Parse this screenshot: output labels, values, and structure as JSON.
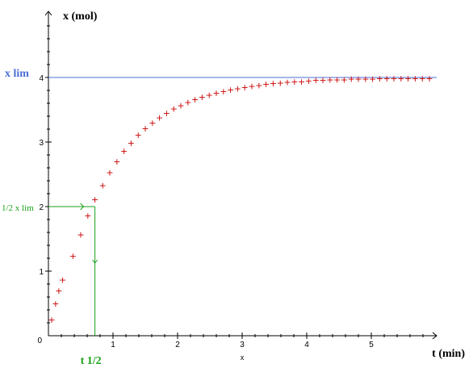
{
  "chart_data": {
    "type": "scatter",
    "title": "",
    "xlabel": "t (min)",
    "ylabel": "x (mol)",
    "x_axis_mark": "x",
    "origin_label": "0",
    "xlim": [
      0,
      5.9
    ],
    "ylim": [
      0,
      5.0
    ],
    "x_ticks": [
      1,
      2,
      3,
      4,
      5
    ],
    "x_tick_labels": [
      "1",
      "2",
      "3",
      "4",
      "5"
    ],
    "y_ticks": [
      1,
      2,
      3,
      4
    ],
    "y_tick_labels": [
      "1",
      "2",
      "3",
      "4"
    ],
    "grid": false,
    "marker": "+",
    "marker_color": "#cc0000",
    "points": [
      [
        0.05,
        0.25
      ],
      [
        0.11,
        0.5
      ],
      [
        0.16,
        0.7
      ],
      [
        0.22,
        0.87
      ],
      [
        0.38,
        1.24
      ],
      [
        0.5,
        1.57
      ],
      [
        0.61,
        1.86
      ],
      [
        0.72,
        2.11
      ],
      [
        0.84,
        2.33
      ],
      [
        0.95,
        2.53
      ],
      [
        1.06,
        2.7
      ],
      [
        1.17,
        2.86
      ],
      [
        1.28,
        2.99
      ],
      [
        1.39,
        3.11
      ],
      [
        1.5,
        3.21
      ],
      [
        1.61,
        3.3
      ],
      [
        1.72,
        3.38
      ],
      [
        1.83,
        3.45
      ],
      [
        1.94,
        3.52
      ],
      [
        2.05,
        3.57
      ],
      [
        2.16,
        3.62
      ],
      [
        2.27,
        3.66
      ],
      [
        2.38,
        3.7
      ],
      [
        2.49,
        3.73
      ],
      [
        2.6,
        3.76
      ],
      [
        2.71,
        3.79
      ],
      [
        2.82,
        3.81
      ],
      [
        2.93,
        3.83
      ],
      [
        3.04,
        3.85
      ],
      [
        3.15,
        3.87
      ],
      [
        3.26,
        3.88
      ],
      [
        3.37,
        3.9
      ],
      [
        3.48,
        3.91
      ],
      [
        3.59,
        3.92
      ],
      [
        3.7,
        3.93
      ],
      [
        3.81,
        3.94
      ],
      [
        3.92,
        3.94
      ],
      [
        4.03,
        3.95
      ],
      [
        4.14,
        3.96
      ],
      [
        4.25,
        3.96
      ],
      [
        4.36,
        3.97
      ],
      [
        4.47,
        3.97
      ],
      [
        4.58,
        3.97
      ],
      [
        4.69,
        3.98
      ],
      [
        4.8,
        3.98
      ],
      [
        4.91,
        3.98
      ],
      [
        5.02,
        3.98
      ],
      [
        5.13,
        3.99
      ],
      [
        5.24,
        3.99
      ],
      [
        5.35,
        3.99
      ],
      [
        5.46,
        3.99
      ],
      [
        5.57,
        3.99
      ],
      [
        5.68,
        3.99
      ],
      [
        5.79,
        3.99
      ],
      [
        5.9,
        3.99
      ]
    ],
    "asymptote": {
      "y": 4,
      "label": "x lim",
      "color": "#4a6fd6"
    },
    "half_point": {
      "x": 0.72,
      "y": 2,
      "y_label": "1/2 x lim",
      "x_label": "t 1/2",
      "color": "#1aa01a"
    }
  }
}
